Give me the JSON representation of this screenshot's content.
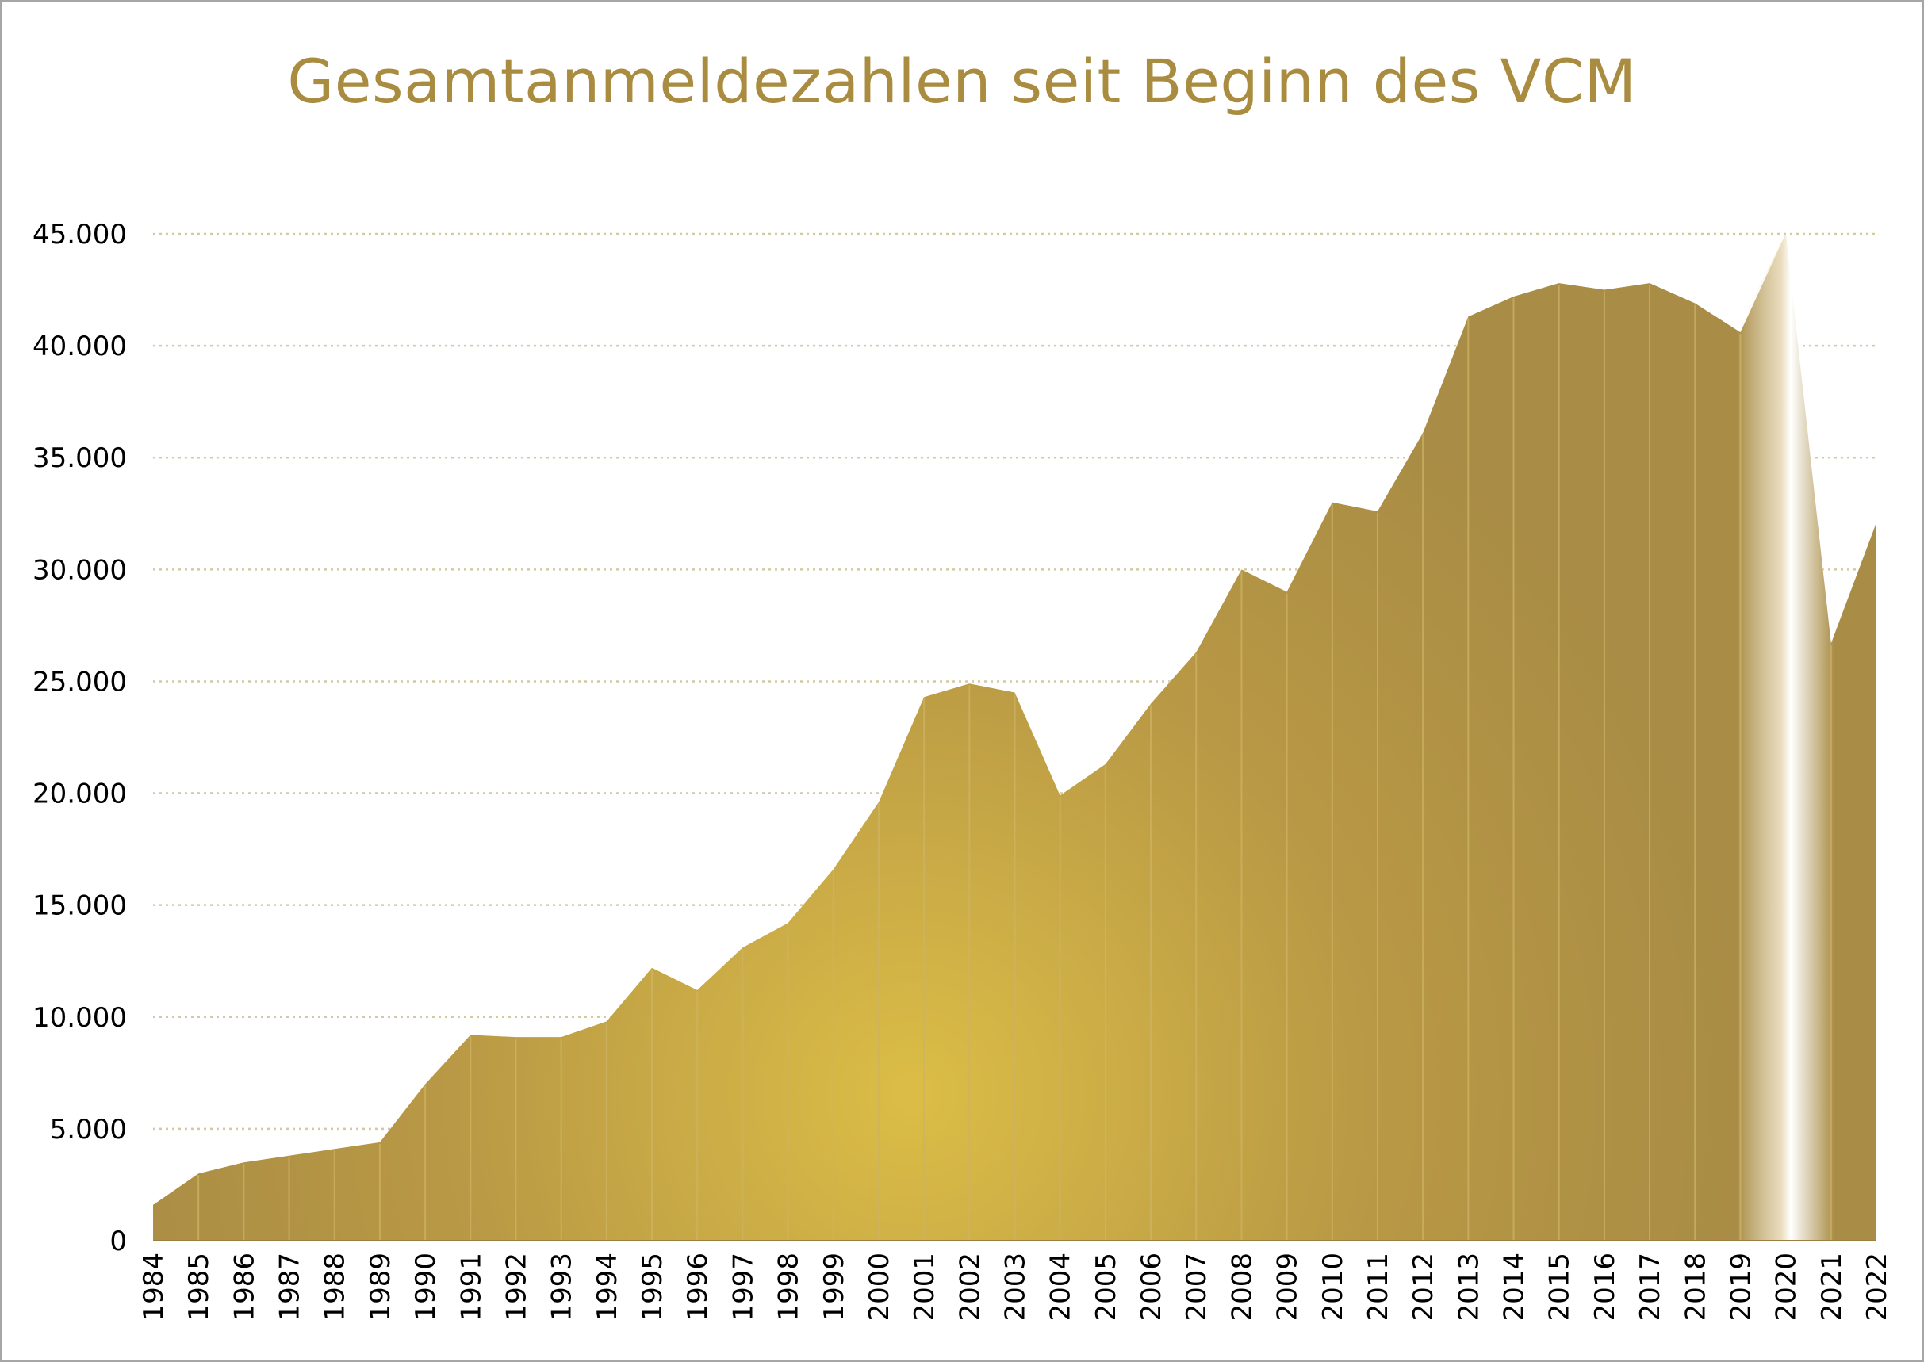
{
  "chart_data": {
    "type": "area",
    "title": "Gesamtanmeldezahlen seit Beginn des VCM",
    "xlabel": "",
    "ylabel": "",
    "ylim": [
      0,
      45000
    ],
    "y_ticks": [
      {
        "value": 0,
        "label": "0"
      },
      {
        "value": 5000,
        "label": "5.000"
      },
      {
        "value": 10000,
        "label": "10.000"
      },
      {
        "value": 15000,
        "label": "15.000"
      },
      {
        "value": 20000,
        "label": "20.000"
      },
      {
        "value": 25000,
        "label": "25.000"
      },
      {
        "value": 30000,
        "label": "30.000"
      },
      {
        "value": 35000,
        "label": "35.000"
      },
      {
        "value": 40000,
        "label": "40.000"
      },
      {
        "value": 45000,
        "label": "45.000"
      }
    ],
    "grid": true,
    "categories": [
      "1984",
      "1985",
      "1986",
      "1987",
      "1988",
      "1989",
      "1990",
      "1991",
      "1992",
      "1993",
      "1994",
      "1995",
      "1996",
      "1997",
      "1998",
      "1999",
      "2000",
      "2001",
      "2002",
      "2003",
      "2004",
      "2005",
      "2006",
      "2007",
      "2008",
      "2009",
      "2010",
      "2011",
      "2012",
      "2013",
      "2014",
      "2015",
      "2016",
      "2017",
      "2018",
      "2019",
      "2020",
      "2021",
      "2022"
    ],
    "values": [
      1600,
      3000,
      3500,
      3800,
      4100,
      4400,
      7000,
      9200,
      9100,
      9100,
      9800,
      12200,
      11200,
      13100,
      14200,
      16600,
      19600,
      24300,
      24900,
      24500,
      19900,
      21300,
      24000,
      26300,
      30000,
      29000,
      33000,
      32600,
      36100,
      41300,
      42200,
      42800,
      42500,
      42800,
      41900,
      40600,
      45000,
      26700,
      32100
    ],
    "highlight": {
      "category": "2020",
      "color": "#c8c8c8"
    },
    "colors": {
      "area_dark": "#a98c45",
      "area_light": "#d6b645",
      "grid": "#d4c9a0",
      "divider": "#cdb364",
      "title": "#a98c3f",
      "frame": "#a6a6a6"
    }
  }
}
